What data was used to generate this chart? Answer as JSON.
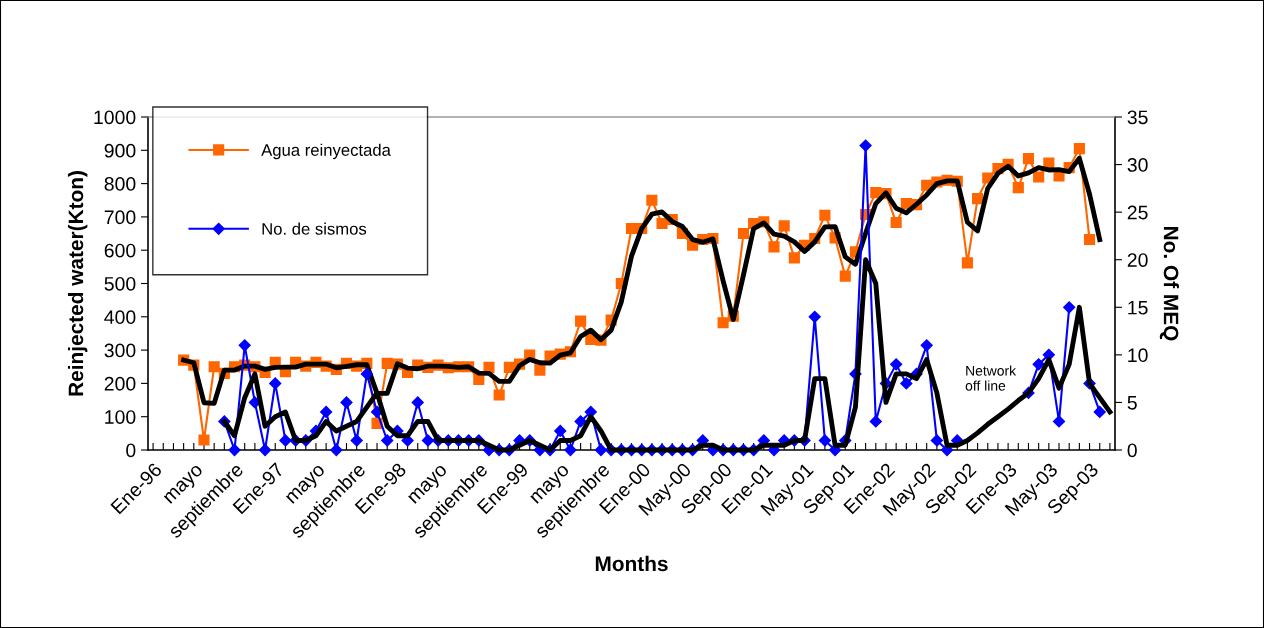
{
  "chart_data": {
    "type": "line",
    "xlabel": "Months",
    "ylabel": "Reinjected water(Kton)",
    "y2label": "No. Of MEQ",
    "categories": [
      "Ene-96",
      null,
      null,
      null,
      "mayo",
      null,
      null,
      null,
      "septiembre",
      null,
      null,
      null,
      "Ene-97",
      null,
      null,
      null,
      "mayo",
      null,
      null,
      null,
      "septiembre",
      null,
      null,
      null,
      "Ene-98",
      null,
      null,
      null,
      "mayo",
      null,
      null,
      null,
      "septiembre",
      null,
      null,
      null,
      "Ene-99",
      null,
      null,
      null,
      "mayo",
      null,
      null,
      null,
      "septiembre",
      null,
      null,
      null,
      "Ene-00",
      null,
      null,
      null,
      "May-00",
      null,
      null,
      null,
      "Sep-00",
      null,
      null,
      null,
      "Ene-01",
      null,
      null,
      null,
      "May-01",
      null,
      null,
      null,
      "Sep-01",
      null,
      null,
      null,
      "Ene-02",
      null,
      null,
      null,
      "May-02",
      null,
      null,
      null,
      "Sep-02",
      null,
      null,
      null,
      "Ene-03",
      null,
      null,
      null,
      "May-03",
      null,
      null,
      null,
      "Sep-03",
      null,
      null
    ],
    "series": [
      {
        "name": "Agua reinyectada",
        "color": "#ff6600",
        "marker": "square",
        "values": [
          null,
          null,
          null,
          270,
          255,
          30,
          250,
          230,
          250,
          255,
          250,
          233,
          263,
          235,
          263,
          252,
          263,
          252,
          242,
          260,
          252,
          260,
          80,
          260,
          258,
          233,
          255,
          248,
          255,
          247,
          250,
          250,
          212,
          248,
          165,
          248,
          258,
          285,
          240,
          282,
          288,
          295,
          387,
          332,
          330,
          390,
          500,
          665,
          665,
          750,
          680,
          692,
          650,
          615,
          632,
          635,
          382,
          402,
          650,
          680,
          685,
          610,
          673,
          577,
          615,
          635,
          705,
          637,
          522,
          595,
          707,
          773,
          770,
          683,
          740,
          737,
          795,
          805,
          810,
          807,
          562,
          755,
          817,
          845,
          858,
          788,
          875,
          820,
          862,
          823,
          848,
          905,
          632,
          null,
          null
        ]
      },
      {
        "name": "No. de sismos",
        "color": "#0000ff",
        "marker": "diamond",
        "axis": "y2",
        "values": [
          null,
          null,
          null,
          null,
          null,
          null,
          null,
          3,
          0,
          11,
          5,
          0,
          7,
          1,
          1,
          1,
          2,
          4,
          0,
          5,
          1,
          8,
          4,
          1,
          2,
          1,
          5,
          1,
          1,
          1,
          1,
          1,
          1,
          0,
          0,
          0,
          1,
          1,
          0,
          0,
          2,
          0,
          3,
          4,
          0,
          0,
          0,
          0,
          0,
          0,
          0,
          0,
          0,
          0,
          1,
          0,
          0,
          0,
          0,
          0,
          1,
          0,
          1,
          1,
          1,
          14,
          1,
          0,
          1,
          8,
          32,
          3,
          7,
          9,
          7,
          8,
          11,
          1,
          0,
          1,
          null,
          null,
          null,
          null,
          null,
          null,
          6,
          9,
          10,
          3,
          15,
          null,
          7,
          4,
          null
        ]
      },
      {
        "color": "#000000",
        "marker": "none",
        "values": [
          null,
          null,
          null,
          270,
          262,
          142,
          140,
          240,
          240,
          252,
          252,
          242,
          248,
          249,
          249,
          258,
          258,
          258,
          247,
          251,
          256,
          256,
          170,
          170,
          259,
          246,
          244,
          252,
          252,
          251,
          248,
          250,
          231,
          230,
          206,
          206,
          253,
          272,
          262,
          261,
          285,
          292,
          341,
          360,
          331,
          360,
          445,
          582,
          665,
          708,
          715,
          686,
          671,
          632,
          624,
          634,
          508,
          392,
          526,
          665,
          682,
          648,
          642,
          625,
          596,
          625,
          670,
          671,
          580,
          558,
          651,
          740,
          772,
          726,
          712,
          738,
          766,
          800,
          808,
          808,
          684,
          658,
          786,
          831,
          852,
          823,
          832,
          848,
          841,
          842,
          836,
          876,
          768,
          632,
          null
        ]
      },
      {
        "color": "#000000",
        "marker": "none",
        "axis": "y2",
        "values": [
          null,
          null,
          null,
          null,
          null,
          null,
          null,
          3,
          1.5,
          5.5,
          8,
          2.5,
          3.5,
          4,
          1,
          1,
          1.5,
          3,
          2,
          2.5,
          3,
          4.5,
          6,
          2.5,
          1.5,
          1.5,
          3,
          3,
          1,
          1,
          1,
          1,
          1,
          0.5,
          0,
          0,
          0.5,
          1,
          0.5,
          0,
          1,
          1,
          1.5,
          3.5,
          2,
          0,
          0,
          0,
          0,
          0,
          0,
          0,
          0,
          0,
          0.5,
          0.5,
          0,
          0,
          0,
          0,
          0.5,
          0.5,
          0.5,
          1,
          1,
          7.5,
          7.5,
          0.5,
          0.5,
          4.5,
          20,
          17.5,
          5,
          8,
          8,
          7.5,
          9.5,
          6,
          0.5,
          0.5,
          1,
          1.8,
          2.7,
          3.5,
          4.3,
          5.2,
          6,
          7.5,
          9.5,
          6.5,
          9,
          15,
          7,
          5.5,
          4
        ]
      }
    ],
    "ylim": [
      0,
      1000
    ],
    "yticks": [
      0,
      100,
      200,
      300,
      400,
      500,
      600,
      700,
      800,
      900,
      1000
    ],
    "y2lim": [
      0,
      35
    ],
    "y2ticks": [
      0,
      5,
      10,
      15,
      20,
      25,
      30,
      35
    ],
    "annotations": [
      "Network\noff line"
    ],
    "grid": false,
    "legend": "top left"
  }
}
